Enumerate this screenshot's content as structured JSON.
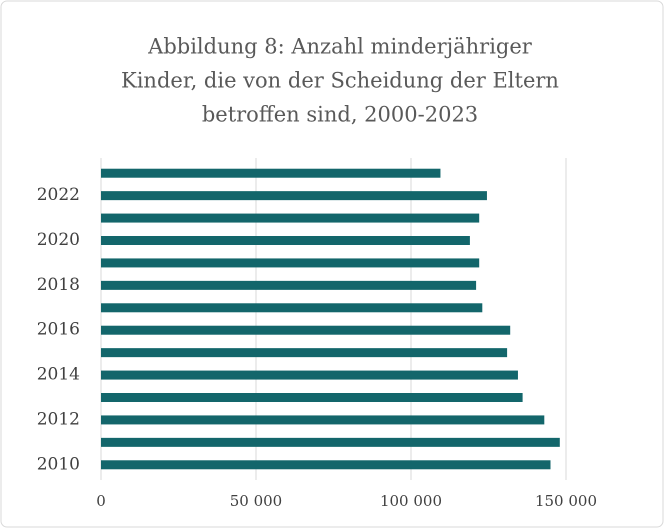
{
  "chart_data": {
    "type": "barh",
    "title": [
      "Abbildung 8: Anzahl minderjähriger",
      "Kinder, die von der Scheidung der Eltern",
      "betroffen sind, 2000-2023"
    ],
    "categories": [
      "2010",
      null,
      "2012",
      null,
      "2014",
      null,
      "2016",
      null,
      "2018",
      null,
      "2020",
      null,
      "2022",
      null
    ],
    "values": [
      145000,
      148000,
      143000,
      136000,
      134500,
      131000,
      132000,
      123000,
      121000,
      122000,
      119000,
      122000,
      124500,
      109500
    ],
    "color": "#13666b",
    "xlim": [
      0,
      167742
    ],
    "xticks": [
      0,
      {
        "value": 50000,
        "label": "50 000"
      },
      {
        "value": 100000,
        "label": "100 000"
      },
      {
        "value": 150000,
        "label": "150 000"
      }
    ],
    "grid": true
  }
}
